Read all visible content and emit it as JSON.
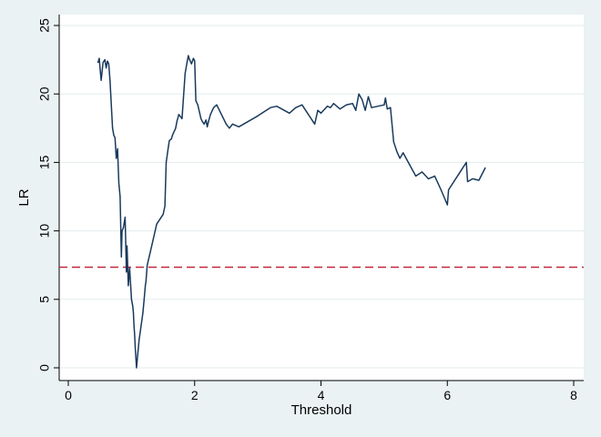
{
  "chart_data": {
    "type": "line",
    "xlabel": "Threshold",
    "ylabel": "LR",
    "xlim": [
      0,
      8
    ],
    "ylim": [
      0,
      25
    ],
    "xticks": [
      "0",
      "2",
      "4",
      "6",
      "8"
    ],
    "yticks": [
      "0",
      "5",
      "10",
      "15",
      "20",
      "25"
    ],
    "grid": "horizontal",
    "background_color": "#eaf2f3",
    "plot_background": "#ffffff",
    "series_color": "#1a3a5c",
    "threshold_line": {
      "y": 7.35,
      "color": "#c0283c",
      "style": "dashed"
    },
    "series": [
      {
        "x": [
          0.47,
          0.49,
          0.5,
          0.52,
          0.55,
          0.58,
          0.6,
          0.62,
          0.64,
          0.66,
          0.7,
          0.72,
          0.74,
          0.76,
          0.78,
          0.8,
          0.82,
          0.84,
          0.85,
          0.87,
          0.9,
          0.92,
          0.93,
          0.95,
          0.97,
          0.99,
          1.0,
          1.02,
          1.03,
          1.04,
          1.05,
          1.06,
          1.08,
          1.09,
          1.1,
          1.12,
          1.15,
          1.18,
          1.2,
          1.22,
          1.23,
          1.25,
          1.3,
          1.4,
          1.5,
          1.53,
          1.55,
          1.58,
          1.6,
          1.63,
          1.65,
          1.7,
          1.72,
          1.75,
          1.8,
          1.85,
          1.88,
          1.9,
          1.92,
          1.95,
          1.98,
          2.0,
          2.02,
          2.05,
          2.1,
          2.12,
          2.15,
          2.18,
          2.2,
          2.22,
          2.25,
          2.28,
          2.3,
          2.35,
          2.5,
          2.55,
          2.6,
          2.7,
          3.0,
          3.2,
          3.3,
          3.5,
          3.6,
          3.7,
          3.9,
          3.95,
          4.0,
          4.1,
          4.15,
          4.2,
          4.3,
          4.4,
          4.5,
          4.55,
          4.6,
          4.65,
          4.7,
          4.75,
          4.8,
          5.0,
          5.02,
          5.05,
          5.1,
          5.15,
          5.2,
          5.25,
          5.3,
          5.5,
          5.6,
          5.7,
          5.8,
          5.9,
          6.0,
          6.02,
          6.3,
          6.32,
          6.4,
          6.5,
          6.6
        ],
        "y": [
          22.3,
          22.6,
          22.0,
          21.0,
          22.3,
          22.5,
          21.9,
          22.4,
          22.2,
          21.0,
          17.5,
          17.0,
          16.8,
          15.3,
          16.0,
          13.5,
          12.5,
          8.1,
          10.0,
          10.2,
          11.0,
          7.0,
          8.9,
          6.0,
          7.3,
          5.8,
          5.0,
          4.5,
          4.0,
          3.0,
          2.5,
          1.5,
          0.0,
          0.5,
          1.0,
          2.0,
          3.0,
          4.0,
          5.0,
          6.0,
          6.3,
          7.5,
          8.5,
          10.5,
          11.2,
          11.8,
          15.0,
          16.0,
          16.6,
          16.7,
          17.0,
          17.5,
          18.0,
          18.5,
          18.2,
          21.5,
          22.3,
          22.8,
          22.5,
          22.2,
          22.6,
          22.4,
          19.5,
          19.2,
          18.2,
          18.0,
          17.8,
          18.1,
          17.6,
          18.0,
          18.5,
          18.8,
          19.0,
          19.2,
          17.8,
          17.5,
          17.8,
          17.6,
          18.4,
          19.0,
          19.1,
          18.6,
          19.0,
          19.2,
          17.8,
          18.8,
          18.6,
          19.1,
          19.0,
          19.3,
          18.9,
          19.2,
          19.3,
          18.8,
          20.0,
          19.6,
          18.8,
          19.8,
          19.0,
          19.2,
          19.7,
          18.9,
          19.0,
          16.5,
          15.8,
          15.3,
          15.7,
          14.0,
          14.3,
          13.8,
          14.0,
          13.0,
          11.9,
          13.0,
          15.0,
          13.6,
          13.8,
          13.7,
          14.6
        ]
      }
    ]
  }
}
